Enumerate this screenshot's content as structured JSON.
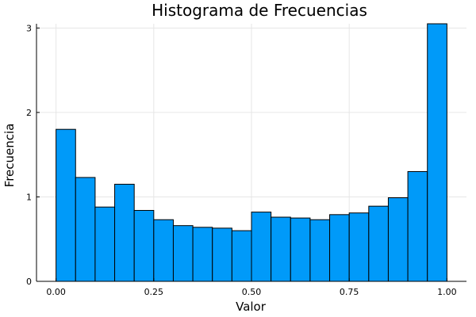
{
  "chart_data": {
    "type": "bar",
    "title": "Histograma de Frecuencias",
    "xlabel": "Valor",
    "ylabel": "Frecuencia",
    "bin_edges": [
      0.0,
      0.05,
      0.1,
      0.15,
      0.2,
      0.25,
      0.3,
      0.35,
      0.4,
      0.45,
      0.5,
      0.55,
      0.6,
      0.65,
      0.7,
      0.75,
      0.8,
      0.85,
      0.9,
      0.95,
      1.0
    ],
    "values": [
      1.8,
      1.23,
      0.88,
      1.15,
      0.84,
      0.73,
      0.66,
      0.64,
      0.63,
      0.6,
      0.82,
      0.76,
      0.75,
      0.73,
      0.79,
      0.81,
      0.89,
      0.99,
      1.3,
      3.05
    ],
    "xlim": [
      -0.05,
      1.05
    ],
    "ylim": [
      0,
      3.05
    ],
    "x_ticks": [
      0.0,
      0.25,
      0.5,
      0.75,
      1.0
    ],
    "x_tick_labels": [
      "0.00",
      "0.25",
      "0.50",
      "0.75",
      "1.00"
    ],
    "y_ticks": [
      0,
      1,
      2,
      3
    ],
    "y_tick_labels": [
      "0",
      "1",
      "2",
      "3"
    ],
    "grid": true,
    "bar_color": "#009af9",
    "edge_color": "#000000"
  }
}
